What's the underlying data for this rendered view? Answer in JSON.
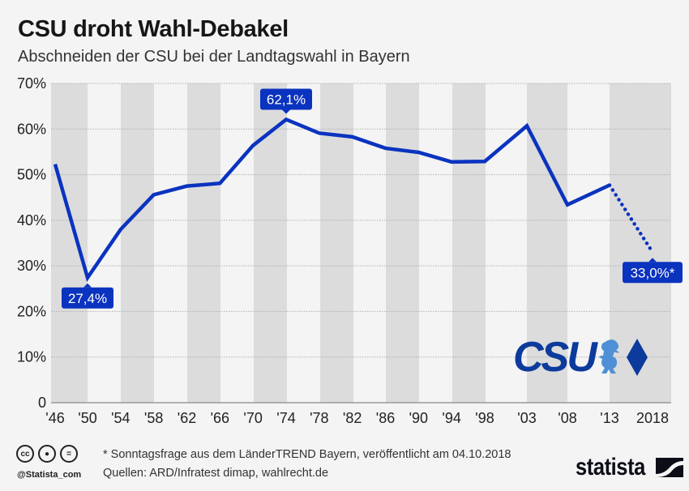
{
  "header": {
    "title": "CSU droht Wahl-Debakel",
    "subtitle": "Abschneiden der CSU bei der Landtagswahl in Bayern"
  },
  "colors": {
    "line": "#0a33bf",
    "label_bg": "#0a33bf",
    "band_dark": "#dcdcdc",
    "band_light": "#f4f4f4",
    "logo_blue": "#0d3b9c",
    "lion_blue": "#4f8fd6"
  },
  "chart_data": {
    "type": "line",
    "title": "CSU droht Wahl-Debakel",
    "subtitle": "Abschneiden der CSU bei der Landtagswahl in Bayern",
    "xlabel": "",
    "ylabel": "",
    "categories": [
      "'46",
      "'50",
      "'54",
      "'58",
      "'62",
      "'66",
      "'70",
      "'74",
      "'78",
      "'82",
      "'86",
      "'90",
      "'94",
      "'98",
      "'03",
      "'08",
      "'13",
      "2018"
    ],
    "years": [
      1946,
      1950,
      1954,
      1958,
      1962,
      1966,
      1970,
      1974,
      1978,
      1982,
      1986,
      1990,
      1994,
      1998,
      2003,
      2008,
      2013,
      2018
    ],
    "series": [
      {
        "name": "CSU",
        "values": [
          52.3,
          27.4,
          38.0,
          45.6,
          47.5,
          48.1,
          56.4,
          62.1,
          59.1,
          58.3,
          55.8,
          54.9,
          52.8,
          52.9,
          60.7,
          43.4,
          47.7,
          33.0
        ]
      }
    ],
    "projected_last_point": true,
    "yticks": [
      "0",
      "10%",
      "20%",
      "30%",
      "40%",
      "50%",
      "60%",
      "70%"
    ],
    "ylim": [
      0,
      70
    ],
    "grid": true,
    "annotations": [
      {
        "year": 1950,
        "text": "27,4%"
      },
      {
        "year": 1974,
        "text": "62,1%"
      },
      {
        "year": 2018,
        "text": "33,0%*"
      }
    ]
  },
  "logo": {
    "text": "CSU",
    "icon": "lion-icon",
    "diamond": "diamond-icon"
  },
  "footer": {
    "note": "* Sonntagsfrage aus dem LänderTREND Bayern, veröffentlicht am 04.10.2018",
    "source": "Quellen: ARD/Infratest dimap, wahlrecht.de",
    "handle": "@Statista_com",
    "brand": "statista",
    "cc_icons": [
      "cc",
      "by",
      "nd"
    ]
  }
}
